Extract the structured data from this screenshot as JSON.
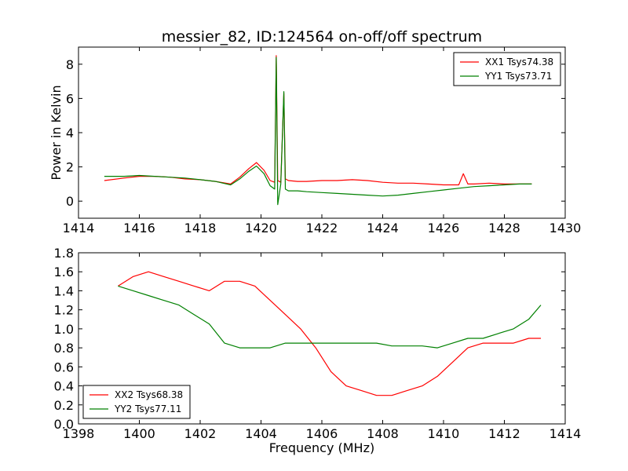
{
  "figure": {
    "title": "messier_82, ID:124564 on-off/off spectrum"
  },
  "chart_data": [
    {
      "type": "line",
      "title": "messier_82, ID:124564 on-off/off spectrum",
      "xlabel": "",
      "ylabel": "Power in Kelvin",
      "xlim": [
        1414,
        1430
      ],
      "ylim": [
        -1,
        9
      ],
      "xticks": [
        1414,
        1416,
        1418,
        1420,
        1422,
        1424,
        1426,
        1428,
        1430
      ],
      "yticks": [
        0,
        2,
        4,
        6,
        8
      ],
      "legend_position": "top-right",
      "series": [
        {
          "name": "XX1 Tsys74.38",
          "color": "#ff0000",
          "x": [
            1414.85,
            1415.5,
            1416.0,
            1416.5,
            1417.0,
            1417.5,
            1418.0,
            1418.5,
            1419.0,
            1419.3,
            1419.6,
            1419.85,
            1420.1,
            1420.3,
            1420.45,
            1420.5,
            1420.55,
            1420.65,
            1420.75,
            1420.8,
            1420.9,
            1421.2,
            1421.5,
            1422.0,
            1422.5,
            1423.0,
            1423.5,
            1424.0,
            1424.5,
            1425.0,
            1425.5,
            1426.0,
            1426.5,
            1426.65,
            1426.8,
            1427.0,
            1427.5,
            1428.0,
            1428.5,
            1428.9
          ],
          "y": [
            1.2,
            1.35,
            1.45,
            1.45,
            1.4,
            1.3,
            1.25,
            1.15,
            1.0,
            1.4,
            1.9,
            2.25,
            1.8,
            1.2,
            1.1,
            8.5,
            1.2,
            1.1,
            6.3,
            1.3,
            1.2,
            1.15,
            1.15,
            1.2,
            1.2,
            1.25,
            1.2,
            1.1,
            1.05,
            1.05,
            1.0,
            0.95,
            0.95,
            1.6,
            1.0,
            1.0,
            1.05,
            1.0,
            1.0,
            1.0
          ]
        },
        {
          "name": "YY1 Tsys73.71",
          "color": "#008000",
          "x": [
            1414.85,
            1415.5,
            1416.0,
            1416.5,
            1417.0,
            1417.5,
            1418.0,
            1418.5,
            1419.0,
            1419.3,
            1419.6,
            1419.85,
            1420.1,
            1420.3,
            1420.45,
            1420.5,
            1420.55,
            1420.65,
            1420.75,
            1420.8,
            1420.9,
            1421.2,
            1421.5,
            1422.0,
            1422.5,
            1423.0,
            1423.5,
            1424.0,
            1424.5,
            1425.0,
            1425.5,
            1426.0,
            1426.5,
            1427.0,
            1427.5,
            1428.0,
            1428.5,
            1428.9
          ],
          "y": [
            1.45,
            1.45,
            1.5,
            1.45,
            1.4,
            1.35,
            1.25,
            1.15,
            0.95,
            1.3,
            1.75,
            2.05,
            1.6,
            0.9,
            0.7,
            8.4,
            -0.2,
            1.0,
            6.4,
            0.7,
            0.6,
            0.6,
            0.55,
            0.5,
            0.45,
            0.4,
            0.35,
            0.3,
            0.35,
            0.45,
            0.55,
            0.65,
            0.75,
            0.85,
            0.9,
            0.95,
            1.0,
            1.0
          ]
        }
      ]
    },
    {
      "type": "line",
      "title": "",
      "xlabel": "Frequency (MHz)",
      "ylabel": "",
      "xlim": [
        1398,
        1414
      ],
      "ylim": [
        0.0,
        1.8
      ],
      "xticks": [
        1398,
        1400,
        1402,
        1404,
        1406,
        1408,
        1410,
        1412,
        1414
      ],
      "yticks": [
        0.0,
        0.2,
        0.4,
        0.6,
        0.8,
        1.0,
        1.2,
        1.4,
        1.6,
        1.8
      ],
      "legend_position": "bottom-left",
      "series": [
        {
          "name": "XX2 Tsys68.38",
          "color": "#ff0000",
          "x": [
            1399.3,
            1399.8,
            1400.3,
            1400.8,
            1401.3,
            1401.8,
            1402.3,
            1402.8,
            1403.3,
            1403.8,
            1404.3,
            1404.8,
            1405.3,
            1405.8,
            1406.3,
            1406.8,
            1407.3,
            1407.8,
            1408.3,
            1408.8,
            1409.3,
            1409.8,
            1410.3,
            1410.8,
            1411.3,
            1411.8,
            1412.3,
            1412.8,
            1413.2
          ],
          "y": [
            1.45,
            1.55,
            1.6,
            1.55,
            1.5,
            1.45,
            1.4,
            1.5,
            1.5,
            1.45,
            1.3,
            1.15,
            1.0,
            0.8,
            0.55,
            0.4,
            0.35,
            0.3,
            0.3,
            0.35,
            0.4,
            0.5,
            0.65,
            0.8,
            0.85,
            0.85,
            0.85,
            0.9,
            0.9
          ]
        },
        {
          "name": "YY2 Tsys77.11",
          "color": "#008000",
          "x": [
            1399.3,
            1399.8,
            1400.3,
            1400.8,
            1401.3,
            1401.8,
            1402.3,
            1402.8,
            1403.3,
            1403.8,
            1404.3,
            1404.8,
            1405.3,
            1405.8,
            1406.3,
            1406.8,
            1407.3,
            1407.8,
            1408.3,
            1408.8,
            1409.3,
            1409.8,
            1410.3,
            1410.8,
            1411.3,
            1411.8,
            1412.3,
            1412.8,
            1413.2
          ],
          "y": [
            1.45,
            1.4,
            1.35,
            1.3,
            1.25,
            1.15,
            1.05,
            0.85,
            0.8,
            0.8,
            0.8,
            0.85,
            0.85,
            0.85,
            0.85,
            0.85,
            0.85,
            0.85,
            0.82,
            0.82,
            0.82,
            0.8,
            0.85,
            0.9,
            0.9,
            0.95,
            1.0,
            1.1,
            1.25
          ]
        }
      ]
    }
  ]
}
